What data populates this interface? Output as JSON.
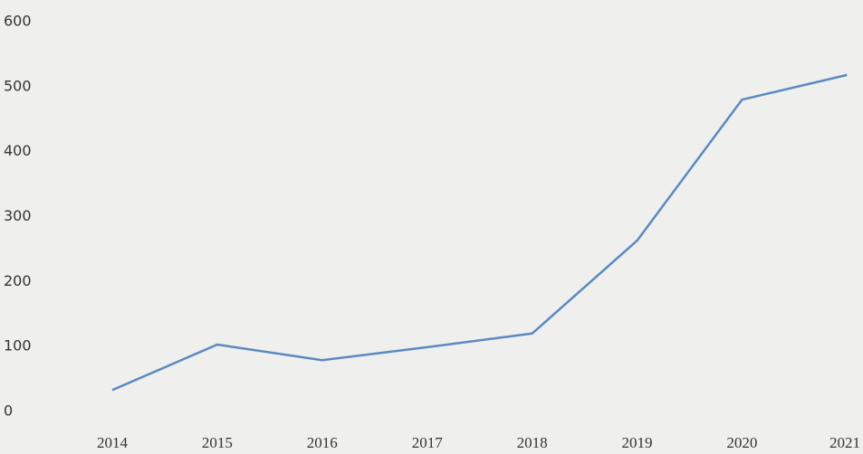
{
  "chart_data": {
    "type": "line",
    "categories": [
      "2014",
      "2015",
      "2016",
      "2017",
      "2018",
      "2019",
      "2020",
      "2021"
    ],
    "series": [
      {
        "color": "#5b89c0",
        "values": [
          33,
          103,
          79,
          99,
          120,
          263,
          480,
          518
        ]
      }
    ],
    "ylim": [
      0,
      600
    ],
    "yticks": [
      0,
      100,
      200,
      300,
      400,
      500,
      600
    ],
    "grid": false
  }
}
